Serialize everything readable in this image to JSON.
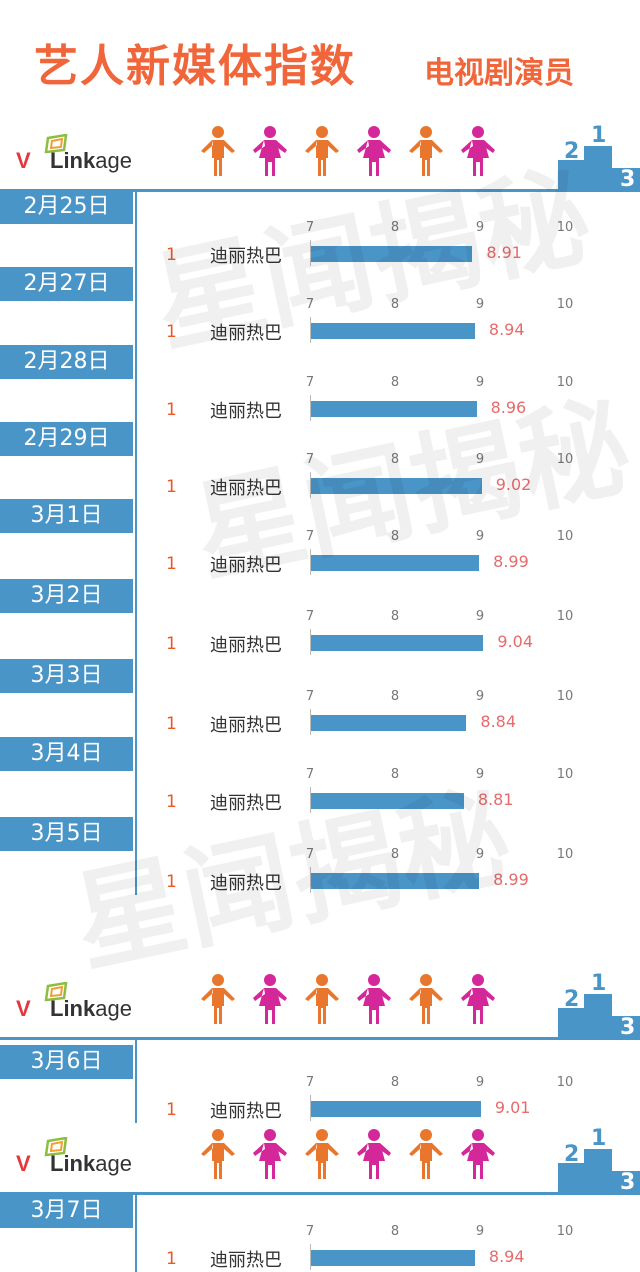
{
  "title": {
    "main": "艺人新媒体指数",
    "sub": "电视剧演员"
  },
  "logo": {
    "prefix": "V",
    "mid": "Link",
    "suffix": "age"
  },
  "watermark": "星闻揭秘",
  "colors": {
    "accent_orange": "#f0663a",
    "bar_blue": "#4a95c8",
    "value_red": "#e86a6a",
    "figure_orange": "#e8762c",
    "figure_magenta": "#d4279a"
  },
  "figures": [
    "person-orange",
    "person-magenta",
    "person-orange",
    "person-magenta",
    "person-orange",
    "person-magenta"
  ],
  "axis_ticks": [
    "7",
    "8",
    "9",
    "10"
  ],
  "chart_data": {
    "type": "bar",
    "xlim": [
      7,
      10
    ],
    "ticks": [
      7,
      8,
      9,
      10
    ],
    "rows": [
      {
        "date": "2月25日",
        "rank": "1",
        "name": "迪丽热巴",
        "value": 8.91
      },
      {
        "date": "2月27日",
        "rank": "1",
        "name": "迪丽热巴",
        "value": 8.94
      },
      {
        "date": "2月28日",
        "rank": "1",
        "name": "迪丽热巴",
        "value": 8.96
      },
      {
        "date": "2月29日",
        "rank": "1",
        "name": "迪丽热巴",
        "value": 9.02
      },
      {
        "date": "3月1日",
        "rank": "1",
        "name": "迪丽热巴",
        "value": 8.99
      },
      {
        "date": "3月2日",
        "rank": "1",
        "name": "迪丽热巴",
        "value": 9.04
      },
      {
        "date": "3月3日",
        "rank": "1",
        "name": "迪丽热巴",
        "value": 8.84
      },
      {
        "date": "3月4日",
        "rank": "1",
        "name": "迪丽热巴",
        "value": 8.81
      },
      {
        "date": "3月5日",
        "rank": "1",
        "name": "迪丽热巴",
        "value": 8.99
      },
      {
        "date": "3月6日",
        "rank": "1",
        "name": "迪丽热巴",
        "value": 9.01
      },
      {
        "date": "3月7日",
        "rank": "1",
        "name": "迪丽热巴",
        "value": 8.94
      }
    ]
  }
}
